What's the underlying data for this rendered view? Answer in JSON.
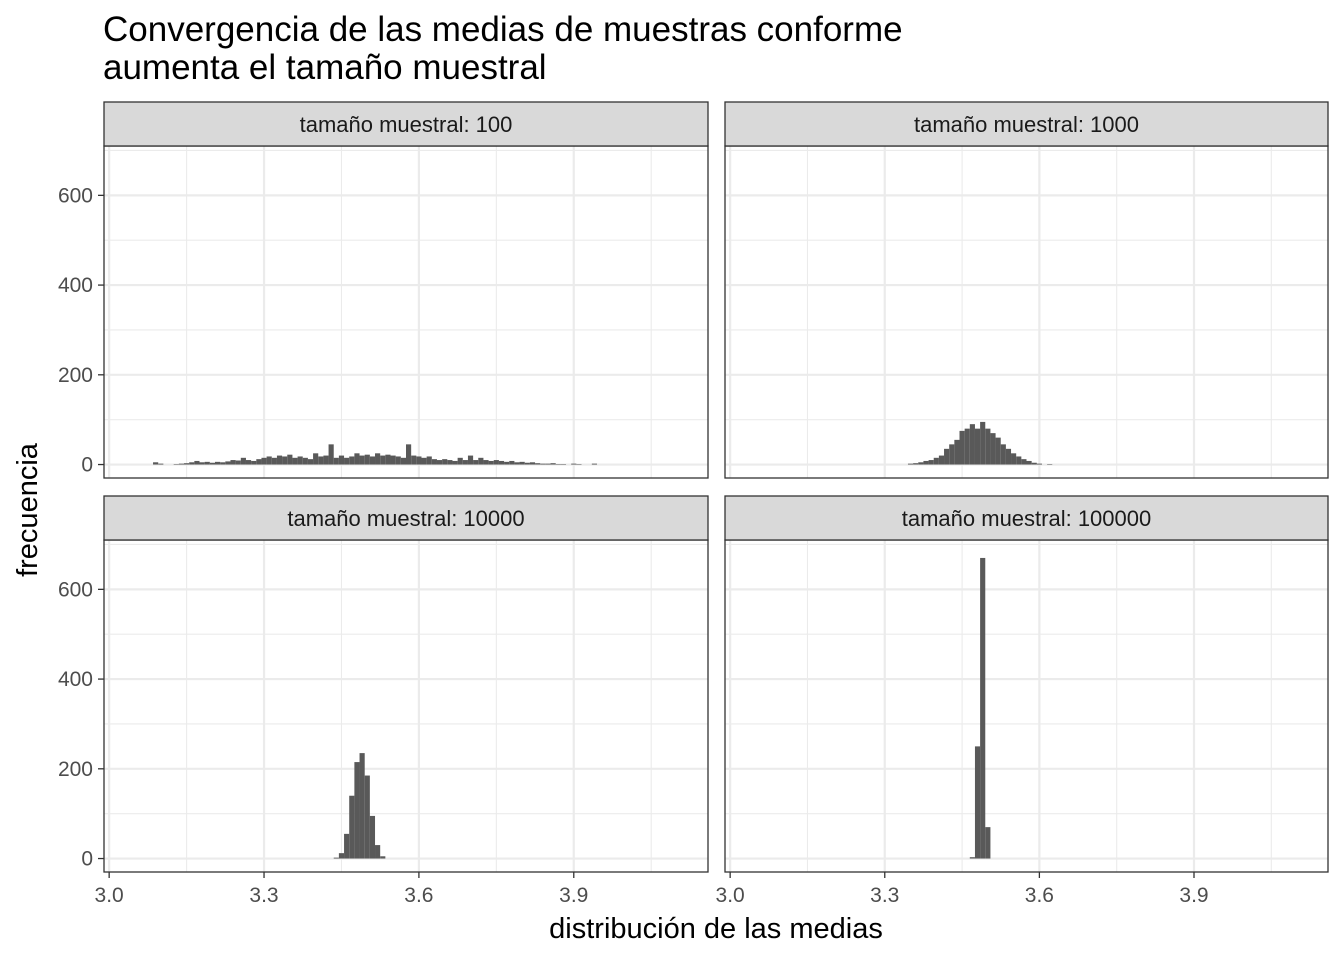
{
  "chart_data": {
    "type": "bar",
    "layout": "facet_wrap 2x2",
    "title_line1": "Convergencia de las medias de muestras conforme",
    "title_line2": "aumenta el tamaño muestral",
    "xlabel": "distribución de las medias",
    "ylabel": "frecuencia",
    "xlim": [
      2.99,
      4.16
    ],
    "ylim": [
      -30,
      710
    ],
    "x_ticks": [
      3.0,
      3.3,
      3.6,
      3.9
    ],
    "x_tick_labels": [
      "3.0",
      "3.3",
      "3.6",
      "3.9"
    ],
    "y_ticks": [
      0,
      200,
      400,
      600
    ],
    "y_tick_labels": [
      "0",
      "200",
      "400",
      "600"
    ],
    "bin_width": 0.01,
    "grid": true,
    "bar_color": "#595959",
    "strip_color": "#d9d9d9",
    "grid_color": "#ebebeb",
    "panels": [
      {
        "strip_label": "tamaño muestral: 100",
        "bins": [
          [
            3.09,
            5
          ],
          [
            3.1,
            2
          ],
          [
            3.13,
            1
          ],
          [
            3.14,
            2
          ],
          [
            3.15,
            3
          ],
          [
            3.16,
            5
          ],
          [
            3.17,
            8
          ],
          [
            3.18,
            5
          ],
          [
            3.19,
            6
          ],
          [
            3.2,
            4
          ],
          [
            3.21,
            6
          ],
          [
            3.22,
            5
          ],
          [
            3.23,
            7
          ],
          [
            3.24,
            10
          ],
          [
            3.25,
            9
          ],
          [
            3.26,
            15
          ],
          [
            3.27,
            10
          ],
          [
            3.28,
            8
          ],
          [
            3.29,
            12
          ],
          [
            3.3,
            15
          ],
          [
            3.31,
            18
          ],
          [
            3.32,
            15
          ],
          [
            3.33,
            20
          ],
          [
            3.34,
            18
          ],
          [
            3.35,
            22
          ],
          [
            3.36,
            15
          ],
          [
            3.37,
            18
          ],
          [
            3.38,
            15
          ],
          [
            3.39,
            12
          ],
          [
            3.4,
            25
          ],
          [
            3.41,
            18
          ],
          [
            3.42,
            20
          ],
          [
            3.43,
            45
          ],
          [
            3.44,
            15
          ],
          [
            3.45,
            20
          ],
          [
            3.46,
            15
          ],
          [
            3.47,
            18
          ],
          [
            3.48,
            25
          ],
          [
            3.49,
            20
          ],
          [
            3.5,
            22
          ],
          [
            3.51,
            18
          ],
          [
            3.52,
            25
          ],
          [
            3.53,
            20
          ],
          [
            3.54,
            22
          ],
          [
            3.55,
            20
          ],
          [
            3.56,
            18
          ],
          [
            3.57,
            15
          ],
          [
            3.58,
            45
          ],
          [
            3.59,
            20
          ],
          [
            3.6,
            18
          ],
          [
            3.61,
            15
          ],
          [
            3.62,
            18
          ],
          [
            3.63,
            12
          ],
          [
            3.64,
            10
          ],
          [
            3.65,
            12
          ],
          [
            3.66,
            10
          ],
          [
            3.67,
            8
          ],
          [
            3.68,
            15
          ],
          [
            3.69,
            10
          ],
          [
            3.7,
            20
          ],
          [
            3.71,
            10
          ],
          [
            3.72,
            15
          ],
          [
            3.73,
            10
          ],
          [
            3.74,
            8
          ],
          [
            3.75,
            10
          ],
          [
            3.76,
            8
          ],
          [
            3.77,
            6
          ],
          [
            3.78,
            8
          ],
          [
            3.79,
            5
          ],
          [
            3.8,
            6
          ],
          [
            3.81,
            4
          ],
          [
            3.82,
            5
          ],
          [
            3.83,
            3
          ],
          [
            3.84,
            2
          ],
          [
            3.85,
            2
          ],
          [
            3.86,
            3
          ],
          [
            3.87,
            1
          ],
          [
            3.88,
            1
          ],
          [
            3.9,
            2
          ],
          [
            3.91,
            1
          ],
          [
            3.94,
            2
          ]
        ]
      },
      {
        "strip_label": "tamaño muestral: 1000",
        "bins": [
          [
            3.35,
            2
          ],
          [
            3.36,
            3
          ],
          [
            3.37,
            5
          ],
          [
            3.38,
            8
          ],
          [
            3.39,
            10
          ],
          [
            3.4,
            15
          ],
          [
            3.41,
            20
          ],
          [
            3.42,
            35
          ],
          [
            3.43,
            45
          ],
          [
            3.44,
            55
          ],
          [
            3.45,
            75
          ],
          [
            3.46,
            80
          ],
          [
            3.47,
            90
          ],
          [
            3.48,
            80
          ],
          [
            3.49,
            95
          ],
          [
            3.5,
            80
          ],
          [
            3.51,
            70
          ],
          [
            3.52,
            60
          ],
          [
            3.53,
            45
          ],
          [
            3.54,
            35
          ],
          [
            3.55,
            25
          ],
          [
            3.56,
            18
          ],
          [
            3.57,
            12
          ],
          [
            3.58,
            8
          ],
          [
            3.59,
            4
          ],
          [
            3.6,
            2
          ],
          [
            3.62,
            1
          ]
        ]
      },
      {
        "strip_label": "tamaño muestral: 10000",
        "bins": [
          [
            3.44,
            2
          ],
          [
            3.45,
            12
          ],
          [
            3.46,
            55
          ],
          [
            3.47,
            140
          ],
          [
            3.48,
            215
          ],
          [
            3.49,
            235
          ],
          [
            3.5,
            185
          ],
          [
            3.51,
            95
          ],
          [
            3.52,
            30
          ],
          [
            3.53,
            5
          ]
        ]
      },
      {
        "strip_label": "tamaño muestral: 100000",
        "bins": [
          [
            3.47,
            3
          ],
          [
            3.48,
            250
          ],
          [
            3.49,
            670
          ],
          [
            3.5,
            70
          ]
        ]
      }
    ]
  }
}
